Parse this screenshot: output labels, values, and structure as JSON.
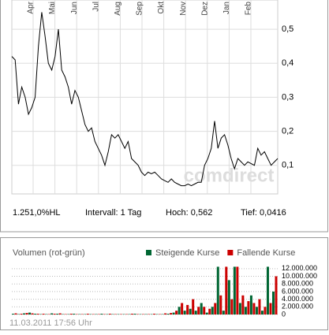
{
  "chart_data": [
    {
      "type": "line",
      "color": "#000000",
      "months": [
        "Apr",
        "Mai",
        "Jun",
        "Jul",
        "Aug",
        "Sep",
        "Okt",
        "Nov",
        "Dez",
        "Jan",
        "Feb"
      ],
      "values": [
        0.42,
        0.41,
        0.28,
        0.33,
        0.3,
        0.25,
        0.27,
        0.3,
        0.45,
        0.55,
        0.48,
        0.4,
        0.38,
        0.42,
        0.5,
        0.38,
        0.36,
        0.33,
        0.28,
        0.32,
        0.3,
        0.26,
        0.22,
        0.2,
        0.21,
        0.17,
        0.15,
        0.13,
        0.1,
        0.14,
        0.19,
        0.18,
        0.19,
        0.17,
        0.15,
        0.17,
        0.12,
        0.11,
        0.1,
        0.08,
        0.07,
        0.08,
        0.075,
        0.08,
        0.07,
        0.06,
        0.055,
        0.05,
        0.06,
        0.05,
        0.045,
        0.04,
        0.04,
        0.045,
        0.04,
        0.045,
        0.05,
        0.05,
        0.1,
        0.12,
        0.15,
        0.23,
        0.15,
        0.18,
        0.19,
        0.16,
        0.12,
        0.09,
        0.12,
        0.11,
        0.1,
        0.11,
        0.105,
        0.1,
        0.15,
        0.13,
        0.14,
        0.12,
        0.1,
        0.11,
        0.12
      ],
      "ylim": [
        0.016,
        0.586
      ],
      "yticks": [
        {
          "value": 0.1,
          "label": "0,1"
        },
        {
          "value": 0.2,
          "label": "0,2"
        },
        {
          "value": 0.3,
          "label": "0,3"
        },
        {
          "value": 0.4,
          "label": "0,4"
        },
        {
          "value": 0.5,
          "label": "0,5"
        }
      ],
      "grid": true,
      "watermark": "comdirect",
      "stats": [
        "1.251,0%HL",
        "Intervall: 1 Tag",
        "Hoch: 0,562",
        "Tief: 0,0416"
      ]
    },
    {
      "type": "bar",
      "title": "Volumen (rot-grün)",
      "series": [
        {
          "name": "Steigende Kurse",
          "color": "#006633",
          "values": [
            200000,
            100000,
            300000,
            500000,
            200000,
            100000,
            100000,
            300000,
            200000,
            100000,
            100000,
            200000,
            100000,
            100000,
            100000,
            100000,
            200000,
            100000,
            100000,
            100000,
            100000,
            100000,
            200000,
            100000,
            100000,
            100000,
            100000,
            100000,
            200000,
            500000,
            2000000,
            1000000,
            1500000,
            1000000,
            3000000,
            500000,
            2000000,
            12500000,
            1000000,
            9000000,
            12500000,
            3000000,
            2000000,
            5000000,
            2000000,
            1000000,
            12500000,
            6000000
          ]
        },
        {
          "name": "Fallende Kurse",
          "color": "#cc0000",
          "values": [
            300000,
            200000,
            400000,
            300000,
            200000,
            200000,
            100000,
            200000,
            300000,
            100000,
            200000,
            100000,
            100000,
            200000,
            100000,
            100000,
            100000,
            200000,
            100000,
            100000,
            100000,
            200000,
            100000,
            100000,
            100000,
            200000,
            100000,
            300000,
            400000,
            1000000,
            3000000,
            2500000,
            4000000,
            2000000,
            2000000,
            1500000,
            3000000,
            5000000,
            12500000,
            4000000,
            12500000,
            5000000,
            3500000,
            3000000,
            4000000,
            2000000,
            3000000,
            10000000
          ]
        }
      ],
      "ylim": [
        0,
        13000000
      ],
      "yticks": [
        0,
        {
          "value": 2000000,
          "label": "2.000.000"
        },
        {
          "value": 4000000,
          "label": "4.000.000"
        },
        {
          "value": 6000000,
          "label": "6.000.000"
        },
        {
          "value": 8000000,
          "label": "8.000.000"
        },
        {
          "value": 10000000,
          "label": "10.000.000"
        },
        {
          "value": 12000000,
          "label": "12.000.000"
        }
      ],
      "grid": true,
      "timestamp": "11.03.2011 17:56 Uhr"
    }
  ]
}
